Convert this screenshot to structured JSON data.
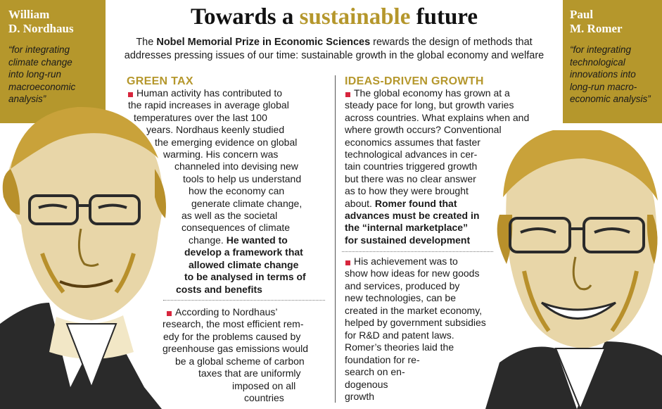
{
  "title": {
    "prefix": "Towards a ",
    "highlight": "sustainable",
    "suffix": " future"
  },
  "subtitle": {
    "bold": "Nobel Memorial Prize in Economic Sciences",
    "line1_before": "The ",
    "line1_after": " rewards the design of methods that",
    "line2": "addresses pressing issues of our time: sustainable growth in the global economy and welfare"
  },
  "left_panel": {
    "name_lines": [
      "William",
      "D. Nordhaus"
    ],
    "quote_lines": [
      "“for integrating",
      "climate change",
      "into long-run",
      "macroeconomic",
      "analysis”"
    ]
  },
  "right_panel": {
    "name_lines": [
      "Paul",
      "M. Romer"
    ],
    "quote_lines": [
      "“for integrating",
      "technological",
      "innovations into",
      "long-run macro-",
      "economic analysis”"
    ]
  },
  "green_tax": {
    "heading": "GREEN TAX",
    "para1": [
      "Human activity has contributed to",
      "the rapid increases in average global",
      "temperatures over the last 100",
      "years. Nordhaus keenly studied",
      "the emerging evidence on global",
      "warming. His concern was",
      "channeled into devising new",
      "tools to help us understand",
      "how the economy can",
      "generate climate change,",
      "as well as the societal",
      "consequences of climate",
      "change.",
      "He wanted to",
      "develop a framework that",
      "allowed climate change",
      "to be analysed in terms of",
      "costs and benefits"
    ],
    "para2": [
      "According to Nordhaus’",
      "research, the most efficient rem-",
      "edy for the problems caused by",
      "greenhouse gas emissions would",
      "be a global scheme of carbon",
      "taxes that are uniformly",
      "imposed on all",
      "countries"
    ]
  },
  "ideas_growth": {
    "heading": "IDEAS-DRIVEN GROWTH",
    "para1": [
      "The global economy has grown at a",
      "steady pace for long, but growth varies",
      "across countries. What explains when and",
      "where growth occurs?  Conventional",
      "economics assumes that faster",
      "technological advances in cer-",
      "tain countries triggered growth",
      "but there was no clear answer",
      "as to how they were brought",
      "about.",
      "Romer found that",
      "advances must be created in",
      "the “internal marketplace”",
      "for sustained development"
    ],
    "para2": [
      "His achievement was to",
      "show how ideas for new goods",
      "and services, produced by",
      "new technologies, can be",
      "created in the market economy,",
      "helped by government subsidies",
      "for R&D and patent laws.",
      "Romer’s theories laid the",
      "foundation for re-",
      "search on en-",
      "dogenous",
      "growth"
    ]
  },
  "colors": {
    "gold": "#b5972c",
    "bullet_red": "#d7263d",
    "text": "#1a1a1a",
    "white": "#ffffff"
  },
  "icons": [
    "portrait-illustration-nordhaus",
    "portrait-illustration-romer",
    "bullet-square-icon"
  ]
}
